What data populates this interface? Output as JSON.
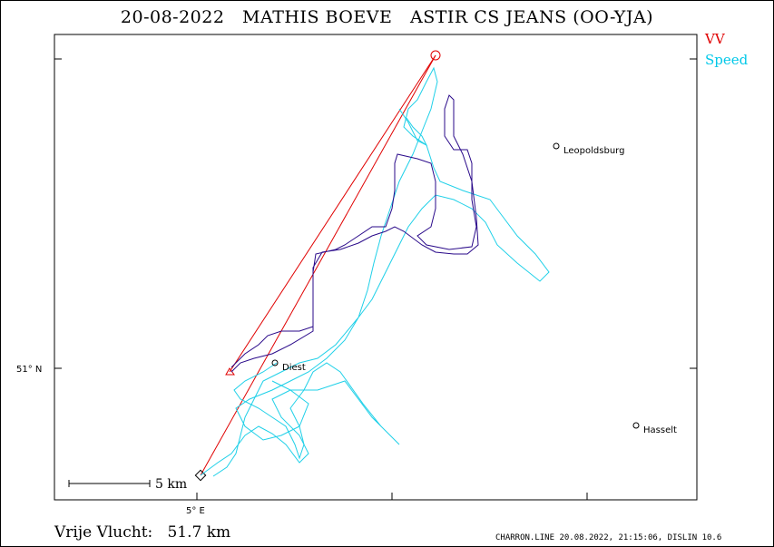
{
  "title": "20-08-2022   MATHIS BOEVE   ASTIR CS JEANS (OO-YJA)",
  "legend": [
    {
      "label": "VV",
      "color": "#e00000"
    },
    {
      "label": "Speed",
      "color": "#00c8e8"
    }
  ],
  "axes": {
    "x_tick_label": "5° E",
    "y_tick_label": "51° N"
  },
  "cities": [
    {
      "name": "Leopoldsburg"
    },
    {
      "name": "Diest"
    },
    {
      "name": "Hasselt"
    }
  ],
  "scale_bar": {
    "label": "5  km"
  },
  "footer": {
    "distance": "Vrije Vlucht:   51.7 km",
    "credit": "CHARRON.LINE 20.08.2022, 21:15:06, DISLIN 10.6"
  },
  "colors": {
    "track_cyan": "#1fd0e8",
    "track_purple": "#2a0a8a",
    "task_line": "#e00000"
  }
}
